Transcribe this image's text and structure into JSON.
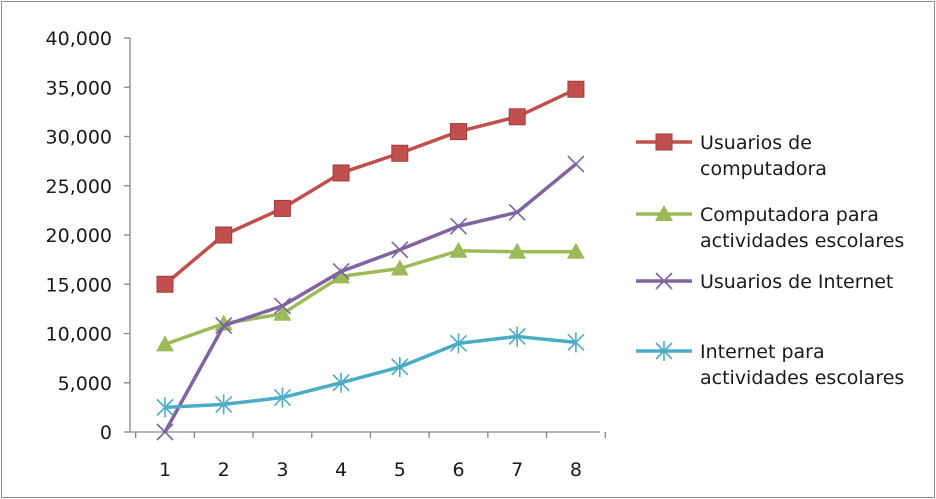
{
  "chart_data": {
    "type": "line",
    "title": "",
    "xlabel": "",
    "ylabel": "",
    "categories": [
      "1",
      "2",
      "3",
      "4",
      "5",
      "6",
      "7",
      "8"
    ],
    "ylim": [
      0,
      40000
    ],
    "yticks": [
      0,
      5000,
      10000,
      15000,
      20000,
      25000,
      30000,
      35000,
      40000
    ],
    "ytick_labels": [
      "0",
      "5,000",
      "10,000",
      "15,000",
      "20,000",
      "25,000",
      "30,000",
      "35,000",
      "40,000"
    ],
    "grid": false,
    "legend_position": "right",
    "series": [
      {
        "name": "Usuarios de computadora",
        "legend_lines": [
          "Usuarios de",
          "computadora"
        ],
        "color": "#c0504d",
        "marker": "square",
        "values": [
          15000,
          20000,
          22700,
          26300,
          28300,
          30500,
          32000,
          34800
        ]
      },
      {
        "name": "Computadora para actividades escolares",
        "legend_lines": [
          "Computadora para",
          "actividades escolares"
        ],
        "color": "#9bbb59",
        "marker": "triangle",
        "values": [
          8900,
          11000,
          12000,
          15800,
          16600,
          18400,
          18300,
          18300
        ]
      },
      {
        "name": "Usuarios de Internet",
        "legend_lines": [
          "Usuarios de Internet"
        ],
        "color": "#8064a2",
        "marker": "x",
        "values": [
          0,
          10800,
          12800,
          16300,
          18500,
          20900,
          22300,
          27200
        ]
      },
      {
        "name": "Internet para actividades escolares",
        "legend_lines": [
          "Internet para",
          "actividades escolares"
        ],
        "color": "#4bacc6",
        "marker": "star",
        "values": [
          2500,
          2800,
          3500,
          5000,
          6600,
          9000,
          9700,
          9100
        ]
      }
    ]
  }
}
